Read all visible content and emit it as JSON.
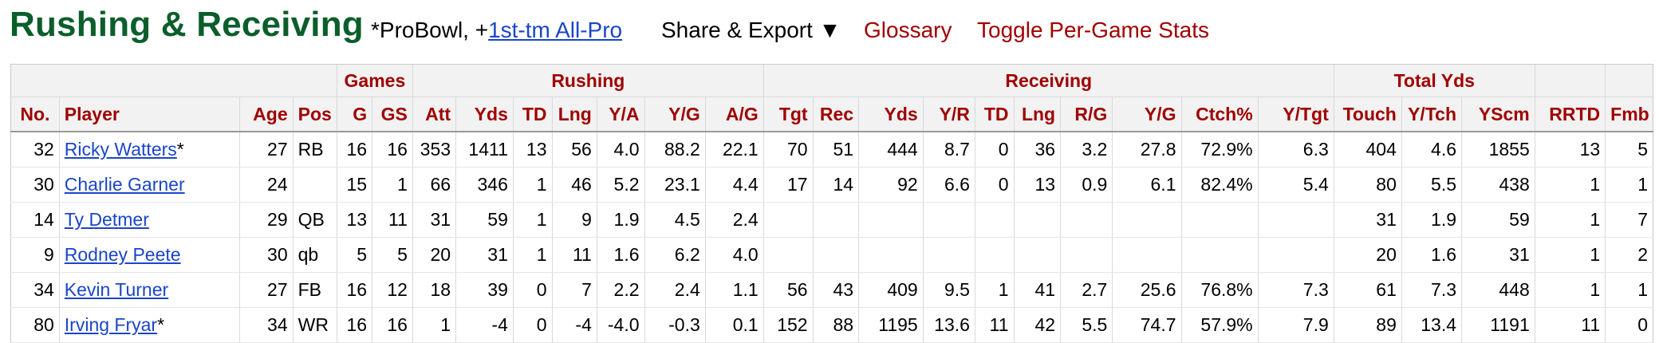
{
  "header": {
    "title": "Rushing & Receiving",
    "legend_prefix": "*ProBowl, +",
    "legend_link": "1st-tm All-Pro",
    "share_export": "Share & Export ▼",
    "glossary": "Glossary",
    "toggle": "Toggle Per-Game Stats"
  },
  "table": {
    "groups": [
      "",
      "Games",
      "Rushing",
      "Receiving",
      "Total Yds",
      "",
      ""
    ],
    "columns": [
      "No.",
      "Player",
      "Age",
      "Pos",
      "G",
      "GS",
      "Att",
      "Yds",
      "TD",
      "Lng",
      "Y/A",
      "Y/G",
      "A/G",
      "Tgt",
      "Rec",
      "Yds",
      "Y/R",
      "TD",
      "Lng",
      "R/G",
      "Y/G",
      "Ctch%",
      "Y/Tgt",
      "Touch",
      "Y/Tch",
      "YScm",
      "RRTD",
      "Fmb"
    ],
    "rows": [
      {
        "no": "32",
        "player": "Ricky Watters",
        "mark": "*",
        "age": "27",
        "pos": "RB",
        "g": "16",
        "gs": "16",
        "att": "353",
        "ryds": "1411",
        "rtd": "13",
        "rlng": "56",
        "ya": "4.0",
        "ryg": "88.2",
        "ag": "22.1",
        "tgt": "70",
        "rec": "51",
        "cyds": "444",
        "yr": "8.7",
        "ctd": "0",
        "clng": "36",
        "rg": "3.2",
        "cyg": "27.8",
        "ctch": "72.9%",
        "ytgt": "6.3",
        "touch": "404",
        "ytch": "4.6",
        "yscm": "1855",
        "rrtd": "13",
        "fmb": "5"
      },
      {
        "no": "30",
        "player": "Charlie Garner",
        "mark": "",
        "age": "24",
        "pos": "",
        "g": "15",
        "gs": "1",
        "att": "66",
        "ryds": "346",
        "rtd": "1",
        "rlng": "46",
        "ya": "5.2",
        "ryg": "23.1",
        "ag": "4.4",
        "tgt": "17",
        "rec": "14",
        "cyds": "92",
        "yr": "6.6",
        "ctd": "0",
        "clng": "13",
        "rg": "0.9",
        "cyg": "6.1",
        "ctch": "82.4%",
        "ytgt": "5.4",
        "touch": "80",
        "ytch": "5.5",
        "yscm": "438",
        "rrtd": "1",
        "fmb": "1"
      },
      {
        "no": "14",
        "player": "Ty Detmer",
        "mark": "",
        "age": "29",
        "pos": "QB",
        "g": "13",
        "gs": "11",
        "att": "31",
        "ryds": "59",
        "rtd": "1",
        "rlng": "9",
        "ya": "1.9",
        "ryg": "4.5",
        "ag": "2.4",
        "tgt": "",
        "rec": "",
        "cyds": "",
        "yr": "",
        "ctd": "",
        "clng": "",
        "rg": "",
        "cyg": "",
        "ctch": "",
        "ytgt": "",
        "touch": "31",
        "ytch": "1.9",
        "yscm": "59",
        "rrtd": "1",
        "fmb": "7"
      },
      {
        "no": "9",
        "player": "Rodney Peete",
        "mark": "",
        "age": "30",
        "pos": "qb",
        "g": "5",
        "gs": "5",
        "att": "20",
        "ryds": "31",
        "rtd": "1",
        "rlng": "11",
        "ya": "1.6",
        "ryg": "6.2",
        "ag": "4.0",
        "tgt": "",
        "rec": "",
        "cyds": "",
        "yr": "",
        "ctd": "",
        "clng": "",
        "rg": "",
        "cyg": "",
        "ctch": "",
        "ytgt": "",
        "touch": "20",
        "ytch": "1.6",
        "yscm": "31",
        "rrtd": "1",
        "fmb": "2"
      },
      {
        "no": "34",
        "player": "Kevin Turner",
        "mark": "",
        "age": "27",
        "pos": "FB",
        "g": "16",
        "gs": "12",
        "att": "18",
        "ryds": "39",
        "rtd": "0",
        "rlng": "7",
        "ya": "2.2",
        "ryg": "2.4",
        "ag": "1.1",
        "tgt": "56",
        "rec": "43",
        "cyds": "409",
        "yr": "9.5",
        "ctd": "1",
        "clng": "41",
        "rg": "2.7",
        "cyg": "25.6",
        "ctch": "76.8%",
        "ytgt": "7.3",
        "touch": "61",
        "ytch": "7.3",
        "yscm": "448",
        "rrtd": "1",
        "fmb": "1"
      },
      {
        "no": "80",
        "player": "Irving Fryar",
        "mark": "*",
        "age": "34",
        "pos": "WR",
        "g": "16",
        "gs": "16",
        "att": "1",
        "ryds": "-4",
        "rtd": "0",
        "rlng": "-4",
        "ya": "-4.0",
        "ryg": "-0.3",
        "ag": "0.1",
        "tgt": "152",
        "rec": "88",
        "cyds": "1195",
        "yr": "13.6",
        "ctd": "11",
        "clng": "42",
        "rg": "5.5",
        "cyg": "74.7",
        "ctch": "57.9%",
        "ytgt": "7.9",
        "touch": "89",
        "ytch": "13.4",
        "yscm": "1191",
        "rrtd": "11",
        "fmb": "0"
      }
    ]
  }
}
